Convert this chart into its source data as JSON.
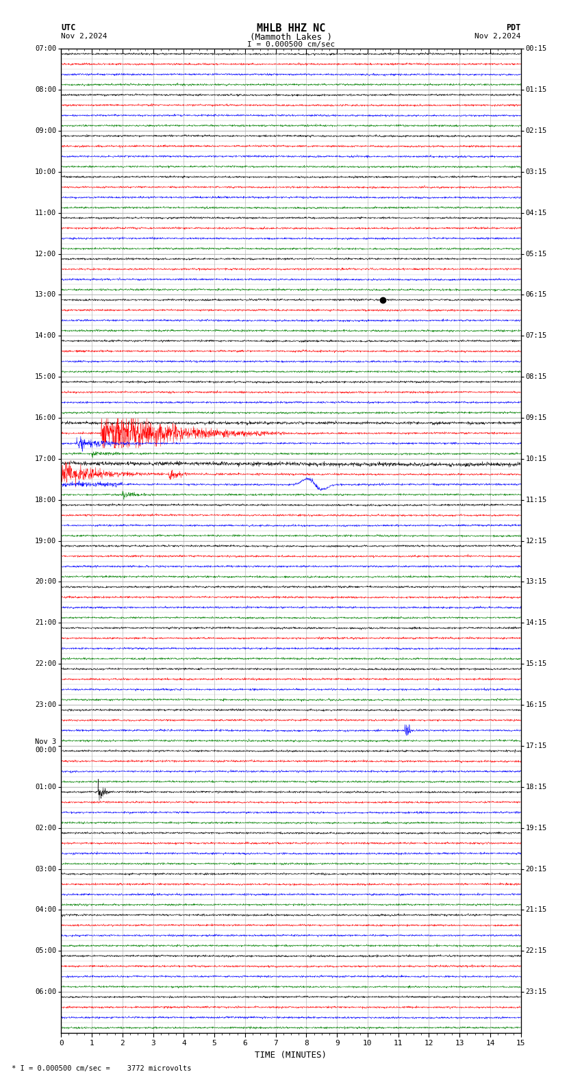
{
  "title_line1": "MHLB HHZ NC",
  "title_line2": "(Mammoth Lakes )",
  "scale_label": "I = 0.000500 cm/sec",
  "utc_label": "UTC",
  "pdt_label": "PDT",
  "date_left": "Nov 2,2024",
  "date_right": "Nov 2,2024",
  "footer_label": "* I = 0.000500 cm/sec =    3772 microvolts",
  "xlabel": "TIME (MINUTES)",
  "utc_times_major": [
    "07:00",
    "08:00",
    "09:00",
    "10:00",
    "11:00",
    "12:00",
    "13:00",
    "14:00",
    "15:00",
    "16:00",
    "17:00",
    "18:00",
    "19:00",
    "20:00",
    "21:00",
    "22:00",
    "23:00",
    "Nov 3\n00:00",
    "01:00",
    "02:00",
    "03:00",
    "04:00",
    "05:00",
    "06:00"
  ],
  "pdt_times_major": [
    "00:15",
    "01:15",
    "02:15",
    "03:15",
    "04:15",
    "05:15",
    "06:15",
    "07:15",
    "08:15",
    "09:15",
    "10:15",
    "11:15",
    "12:15",
    "13:15",
    "14:15",
    "15:15",
    "16:15",
    "17:15",
    "18:15",
    "19:15",
    "20:15",
    "21:15",
    "22:15",
    "23:15"
  ],
  "n_rows": 96,
  "n_groups": 24,
  "colors": [
    "black",
    "red",
    "blue",
    "green"
  ],
  "bg_color": "white",
  "grid_color": "#aaaaaa",
  "time_minutes": 15,
  "fig_width": 8.5,
  "fig_height": 15.84,
  "amplitude": 0.38,
  "noise_base": 0.12,
  "special_events": {
    "red_large_row": 37,
    "red_large2_row": 41,
    "blue_surface_row": 42,
    "green_small_row": 43,
    "black_small_row": 4,
    "blue_dot_row": 58,
    "black_nov3_row": 68
  }
}
